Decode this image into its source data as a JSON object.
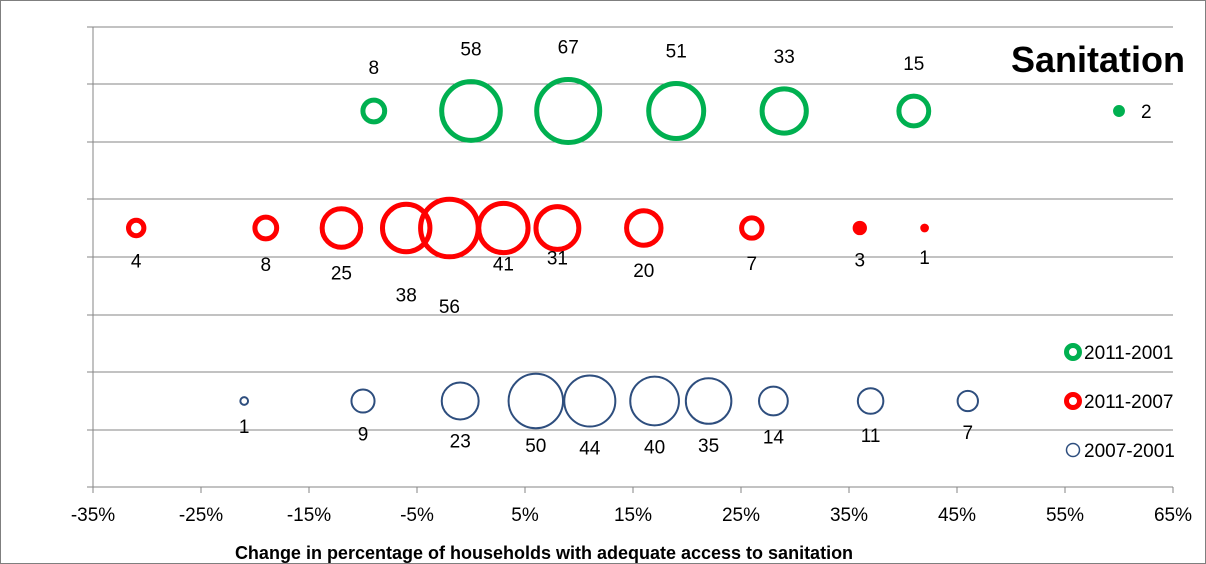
{
  "chart_data": {
    "type": "scatter",
    "subtype": "bubble",
    "title": "Sanitation",
    "xlabel": "Change in percentage of households with adequate access to sanitation",
    "ylabel": "",
    "xlim": [
      -35,
      65
    ],
    "x_ticks": [
      "-35%",
      "-25%",
      "-15%",
      "-5%",
      "5%",
      "15%",
      "25%",
      "35%",
      "45%",
      "55%",
      "65%"
    ],
    "x_tick_values": [
      -35,
      -25,
      -15,
      -5,
      5,
      15,
      25,
      35,
      45,
      55,
      65
    ],
    "grid": "horizontal",
    "legend_position": "right",
    "series": [
      {
        "name": "2011-2001",
        "color": "#00b050",
        "row": 3,
        "points": [
          {
            "x": -9,
            "size": 8
          },
          {
            "x": 0,
            "size": 58
          },
          {
            "x": 9,
            "size": 67
          },
          {
            "x": 19,
            "size": 51
          },
          {
            "x": 29,
            "size": 33
          },
          {
            "x": 41,
            "size": 15
          },
          {
            "x": 60,
            "size": 2
          }
        ]
      },
      {
        "name": "2011-2007",
        "color": "#ff0000",
        "row": 2,
        "points": [
          {
            "x": -31,
            "size": 4
          },
          {
            "x": -19,
            "size": 8
          },
          {
            "x": -12,
            "size": 25
          },
          {
            "x": -6,
            "size": 38
          },
          {
            "x": -2,
            "size": 56
          },
          {
            "x": 3,
            "size": 41
          },
          {
            "x": 8,
            "size": 31
          },
          {
            "x": 16,
            "size": 20
          },
          {
            "x": 26,
            "size": 7
          },
          {
            "x": 36,
            "size": 3
          },
          {
            "x": 42,
            "size": 1
          }
        ]
      },
      {
        "name": "2007-2001",
        "color": "#2e4e7e",
        "row": 1,
        "points": [
          {
            "x": -21,
            "size": 1
          },
          {
            "x": -10,
            "size": 9
          },
          {
            "x": -1,
            "size": 23
          },
          {
            "x": 6,
            "size": 50
          },
          {
            "x": 11,
            "size": 44
          },
          {
            "x": 17,
            "size": 40
          },
          {
            "x": 22,
            "size": 35
          },
          {
            "x": 28,
            "size": 14
          },
          {
            "x": 37,
            "size": 11
          },
          {
            "x": 46,
            "size": 7
          }
        ]
      }
    ]
  }
}
